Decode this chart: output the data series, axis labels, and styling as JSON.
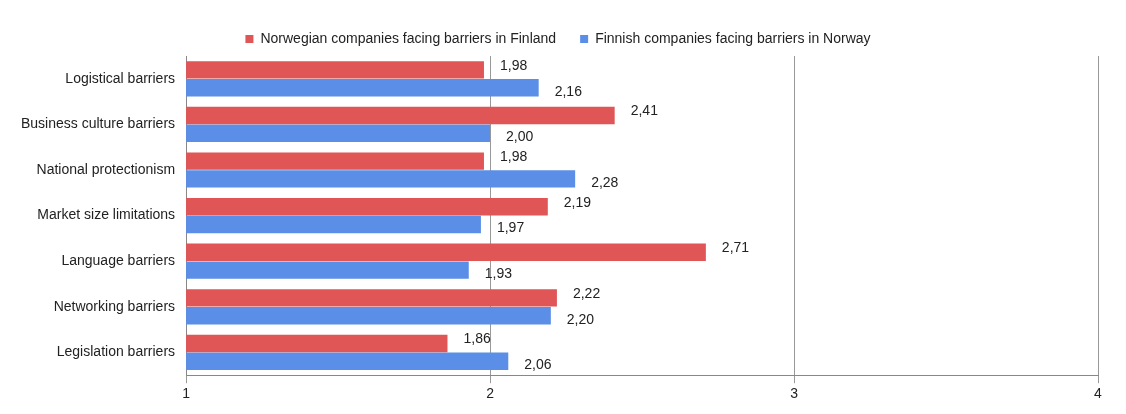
{
  "chart_data": {
    "type": "bar",
    "orientation": "horizontal",
    "categories": [
      "Logistical barriers",
      "Business culture barriers",
      "National protectionism",
      "Market size limitations",
      "Language barriers",
      "Networking barriers",
      "Legislation barriers"
    ],
    "series": [
      {
        "name": "Norwegian companies facing barriers in Finland",
        "color": "#e05555",
        "values": [
          1.98,
          2.41,
          1.98,
          2.19,
          2.71,
          2.22,
          1.86
        ],
        "value_labels": [
          "1,98",
          "2,41",
          "1,98",
          "2,19",
          "2,71",
          "2,22",
          "1,86"
        ]
      },
      {
        "name": "Finnish companies facing barriers in Norway",
        "color": "#5b8ee6",
        "values": [
          2.16,
          2.0,
          2.28,
          1.97,
          1.93,
          2.2,
          2.06
        ],
        "value_labels": [
          "2,16",
          "2,00",
          "2,28",
          "1,97",
          "1,93",
          "2,20",
          "2,06"
        ]
      }
    ],
    "xlim": [
      1,
      4
    ],
    "xticks": [
      1,
      2,
      3,
      4
    ],
    "grid": "x",
    "legend": "top"
  }
}
